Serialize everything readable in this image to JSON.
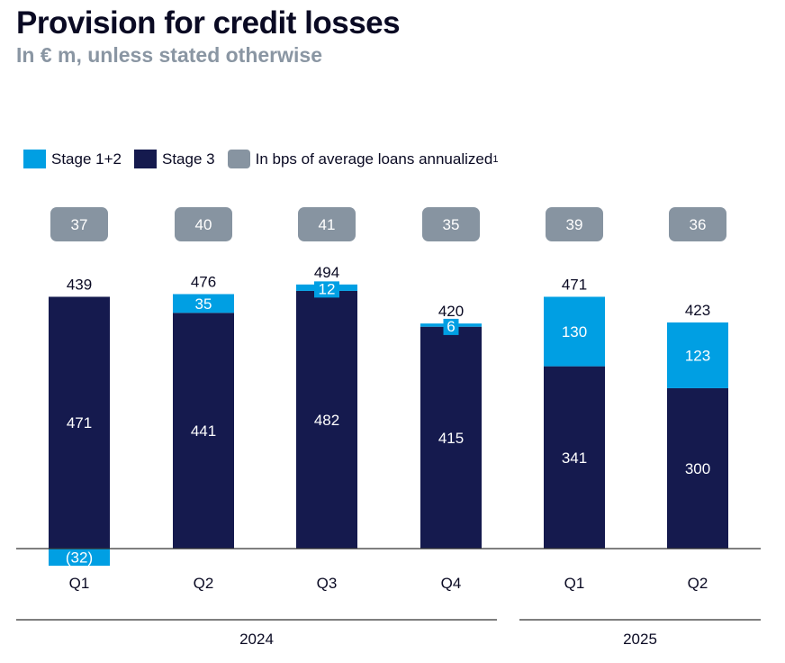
{
  "title": "Provision for credit losses",
  "subtitle": "In € m, unless stated otherwise",
  "legend": {
    "stage12": "Stage 1+2",
    "stage3": "Stage 3",
    "bps": "In bps of average loans annualized",
    "bps_footnote": "1"
  },
  "colors": {
    "stage12": "#009fe3",
    "stage3": "#151a4e",
    "bps": "#8794a1",
    "axis": "#333333",
    "text": "#0a0a23"
  },
  "chart_data": {
    "type": "bar",
    "stacked": true,
    "categories": [
      "Q1",
      "Q2",
      "Q3",
      "Q4",
      "Q1",
      "Q2"
    ],
    "groups": [
      {
        "label": "2024",
        "categories": [
          0,
          1,
          2,
          3
        ]
      },
      {
        "label": "2025",
        "categories": [
          4,
          5
        ]
      }
    ],
    "series": [
      {
        "name": "Stage 3",
        "values": [
          471,
          441,
          482,
          415,
          341,
          300
        ],
        "labels": [
          "471",
          "441",
          "482",
          "415",
          "341",
          "300"
        ]
      },
      {
        "name": "Stage 1+2",
        "values": [
          -32,
          35,
          12,
          6,
          130,
          123
        ],
        "labels": [
          "(32)",
          "35",
          "12",
          "6",
          "130",
          "123"
        ]
      }
    ],
    "totals": [
      439,
      476,
      494,
      420,
      471,
      423
    ],
    "bps": [
      37,
      40,
      41,
      35,
      39,
      36
    ],
    "ylim": [
      -40,
      520
    ],
    "legend_position": "top-left"
  }
}
